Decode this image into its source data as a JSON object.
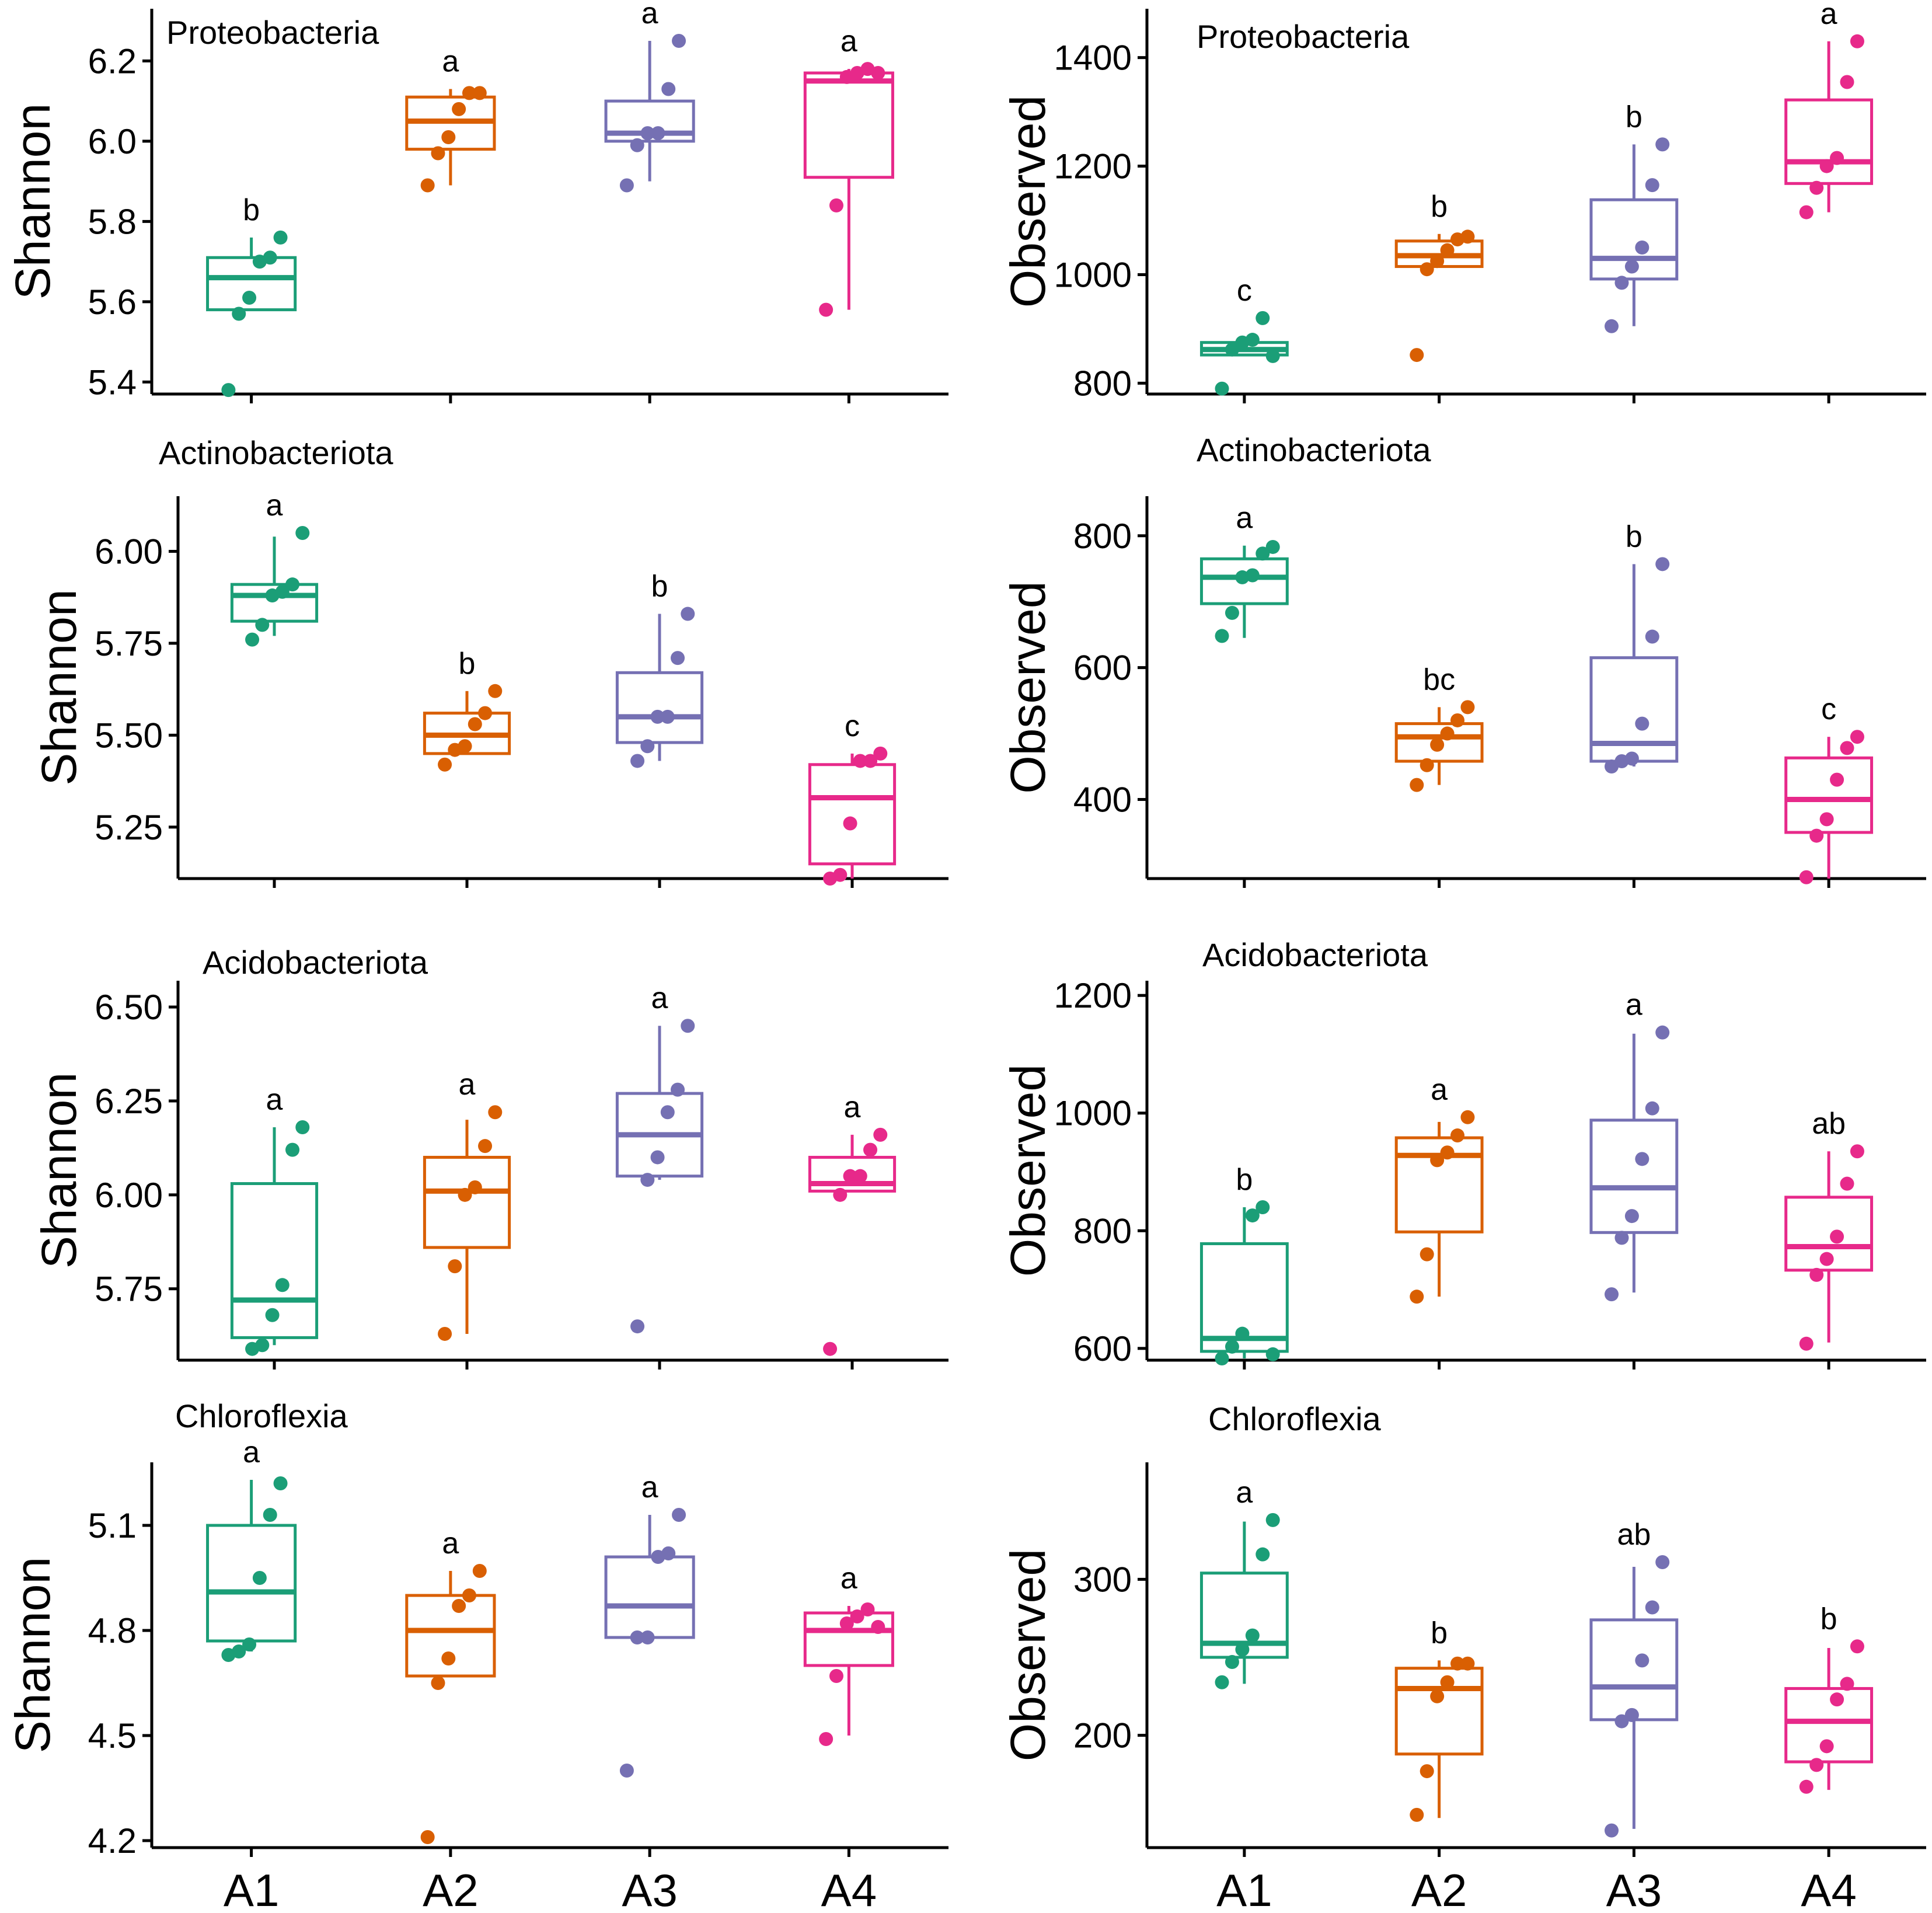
{
  "figure": {
    "groups": [
      "A1",
      "A2",
      "A3",
      "A4"
    ],
    "group_colors": [
      "#1b9e77",
      "#d95f02",
      "#7570b3",
      "#e7298a"
    ],
    "axis_color": "#000000",
    "x_tick_labels": [
      "A1",
      "A2",
      "A3",
      "A4"
    ]
  },
  "chart_data": [
    {
      "type": "box",
      "title": "Proteobacteria",
      "xlabel": "",
      "ylabel": "Shannon",
      "categories": [
        "A1",
        "A2",
        "A3",
        "A4"
      ],
      "ylim": [
        5.37,
        6.33
      ],
      "yticks": [
        5.4,
        5.6,
        5.8,
        6.0,
        6.2
      ],
      "ytick_labels": [
        "5.4",
        "5.6",
        "5.8",
        "6.0",
        "6.2"
      ],
      "boxes": [
        {
          "group": "A1",
          "q1": 5.58,
          "median": 5.66,
          "q3": 5.71,
          "whisker_low": 5.58,
          "whisker_high": 5.76,
          "letter": "b",
          "points": [
            5.38,
            5.57,
            5.61,
            5.7,
            5.71,
            5.76
          ]
        },
        {
          "group": "A2",
          "q1": 5.98,
          "median": 6.05,
          "q3": 6.11,
          "whisker_low": 5.89,
          "whisker_high": 6.13,
          "letter": "a",
          "points": [
            5.89,
            5.97,
            6.01,
            6.08,
            6.12,
            6.12
          ]
        },
        {
          "group": "A3",
          "q1": 6.0,
          "median": 6.02,
          "q3": 6.1,
          "whisker_low": 5.9,
          "whisker_high": 6.25,
          "letter": "a",
          "points": [
            5.89,
            5.99,
            6.02,
            6.02,
            6.13,
            6.25
          ]
        },
        {
          "group": "A4",
          "q1": 5.91,
          "median": 6.15,
          "q3": 6.17,
          "whisker_low": 5.58,
          "whisker_high": 6.18,
          "letter": "a",
          "points": [
            5.58,
            5.84,
            6.16,
            6.17,
            6.18,
            6.17
          ]
        }
      ]
    },
    {
      "type": "box",
      "title": "Proteobacteria",
      "xlabel": "",
      "ylabel": "Observed",
      "categories": [
        "A1",
        "A2",
        "A3",
        "A4"
      ],
      "ylim": [
        780,
        1490
      ],
      "yticks": [
        800,
        1000,
        1200,
        1400
      ],
      "ytick_labels": [
        "800",
        "1000",
        "1200",
        "1400"
      ],
      "boxes": [
        {
          "group": "A1",
          "q1": 852,
          "median": 862,
          "q3": 875,
          "whisker_low": 852,
          "whisker_high": 885,
          "letter": "c",
          "points": [
            790,
            862,
            875,
            880,
            920,
            850
          ]
        },
        {
          "group": "A2",
          "q1": 1015,
          "median": 1035,
          "q3": 1062,
          "whisker_low": 1015,
          "whisker_high": 1075,
          "letter": "b",
          "points": [
            852,
            1010,
            1025,
            1045,
            1065,
            1070
          ]
        },
        {
          "group": "A3",
          "q1": 992,
          "median": 1030,
          "q3": 1138,
          "whisker_low": 905,
          "whisker_high": 1240,
          "letter": "b",
          "points": [
            905,
            985,
            1015,
            1050,
            1165,
            1240
          ]
        },
        {
          "group": "A4",
          "q1": 1168,
          "median": 1208,
          "q3": 1322,
          "whisker_low": 1115,
          "whisker_high": 1430,
          "letter": "a",
          "points": [
            1115,
            1160,
            1200,
            1215,
            1355,
            1430
          ]
        }
      ]
    },
    {
      "type": "box",
      "title": "Actinobacteriota",
      "xlabel": "",
      "ylabel": "Shannon",
      "categories": [
        "A1",
        "A2",
        "A3",
        "A4"
      ],
      "ylim": [
        5.11,
        6.15
      ],
      "yticks": [
        5.25,
        5.5,
        5.75,
        6.0
      ],
      "ytick_labels": [
        "5.25",
        "5.50",
        "5.75",
        "6.00"
      ],
      "boxes": [
        {
          "group": "A1",
          "q1": 5.81,
          "median": 5.88,
          "q3": 5.91,
          "whisker_low": 5.77,
          "whisker_high": 6.04,
          "letter": "a",
          "points": [
            5.76,
            5.8,
            5.88,
            5.89,
            5.91,
            6.05
          ]
        },
        {
          "group": "A2",
          "q1": 5.45,
          "median": 5.5,
          "q3": 5.56,
          "whisker_low": 5.45,
          "whisker_high": 5.62,
          "letter": "b",
          "points": [
            5.42,
            5.46,
            5.47,
            5.53,
            5.56,
            5.62
          ]
        },
        {
          "group": "A3",
          "q1": 5.48,
          "median": 5.55,
          "q3": 5.67,
          "whisker_low": 5.43,
          "whisker_high": 5.83,
          "letter": "b",
          "points": [
            5.43,
            5.47,
            5.55,
            5.55,
            5.71,
            5.83
          ]
        },
        {
          "group": "A4",
          "q1": 5.15,
          "median": 5.33,
          "q3": 5.42,
          "whisker_low": 5.11,
          "whisker_high": 5.45,
          "letter": "c",
          "points": [
            5.11,
            5.12,
            5.26,
            5.43,
            5.43,
            5.45
          ]
        }
      ]
    },
    {
      "type": "box",
      "title": "Actinobacteriota",
      "xlabel": "",
      "ylabel": "Observed",
      "categories": [
        "A1",
        "A2",
        "A3",
        "A4"
      ],
      "ylim": [
        280,
        860
      ],
      "yticks": [
        400,
        600,
        800
      ],
      "ytick_labels": [
        "400",
        "600",
        "800"
      ],
      "boxes": [
        {
          "group": "A1",
          "q1": 697,
          "median": 737,
          "q3": 765,
          "whisker_low": 645,
          "whisker_high": 785,
          "letter": "a",
          "points": [
            648,
            683,
            737,
            740,
            773,
            783
          ]
        },
        {
          "group": "A2",
          "q1": 458,
          "median": 495,
          "q3": 515,
          "whisker_low": 422,
          "whisker_high": 540,
          "letter": "bc",
          "points": [
            422,
            452,
            483,
            500,
            520,
            540
          ]
        },
        {
          "group": "A3",
          "q1": 458,
          "median": 485,
          "q3": 615,
          "whisker_low": 450,
          "whisker_high": 757,
          "letter": "b",
          "points": [
            450,
            458,
            462,
            515,
            647,
            757
          ]
        },
        {
          "group": "A4",
          "q1": 350,
          "median": 400,
          "q3": 463,
          "whisker_low": 280,
          "whisker_high": 495,
          "letter": "c",
          "points": [
            282,
            345,
            370,
            430,
            478,
            495
          ]
        }
      ]
    },
    {
      "type": "box",
      "title": "Acidobacteriota",
      "xlabel": "",
      "ylabel": "Shannon",
      "categories": [
        "A1",
        "A2",
        "A3",
        "A4"
      ],
      "ylim": [
        5.56,
        6.57
      ],
      "yticks": [
        5.75,
        6.0,
        6.25,
        6.5
      ],
      "ytick_labels": [
        "5.75",
        "6.00",
        "6.25",
        "6.50"
      ],
      "boxes": [
        {
          "group": "A1",
          "q1": 5.62,
          "median": 5.72,
          "q3": 6.03,
          "whisker_low": 5.6,
          "whisker_high": 6.18,
          "letter": "a",
          "points": [
            5.59,
            5.6,
            5.68,
            5.76,
            6.12,
            6.18
          ]
        },
        {
          "group": "A2",
          "q1": 5.86,
          "median": 6.01,
          "q3": 6.1,
          "whisker_low": 5.63,
          "whisker_high": 6.2,
          "letter": "a",
          "points": [
            5.63,
            5.81,
            6.0,
            6.02,
            6.13,
            6.22
          ]
        },
        {
          "group": "A3",
          "q1": 6.05,
          "median": 6.16,
          "q3": 6.27,
          "whisker_low": 6.04,
          "whisker_high": 6.45,
          "letter": "a",
          "points": [
            5.65,
            6.04,
            6.1,
            6.22,
            6.28,
            6.45
          ]
        },
        {
          "group": "A4",
          "q1": 6.01,
          "median": 6.03,
          "q3": 6.1,
          "whisker_low": 6.01,
          "whisker_high": 6.16,
          "letter": "a",
          "points": [
            5.59,
            6.0,
            6.05,
            6.05,
            6.12,
            6.16
          ]
        }
      ]
    },
    {
      "type": "box",
      "title": "Acidobacteriota",
      "xlabel": "",
      "ylabel": "Observed",
      "categories": [
        "A1",
        "A2",
        "A3",
        "A4"
      ],
      "ylim": [
        580,
        1225
      ],
      "yticks": [
        600,
        800,
        1000,
        1200
      ],
      "ytick_labels": [
        "600",
        "800",
        "1000",
        "1200"
      ],
      "boxes": [
        {
          "group": "A1",
          "q1": 595,
          "median": 617,
          "q3": 778,
          "whisker_low": 583,
          "whisker_high": 840,
          "letter": "b",
          "points": [
            583,
            603,
            625,
            826,
            840,
            590
          ]
        },
        {
          "group": "A2",
          "q1": 798,
          "median": 928,
          "q3": 958,
          "whisker_low": 688,
          "whisker_high": 985,
          "letter": "a",
          "points": [
            688,
            760,
            920,
            933,
            962,
            993
          ]
        },
        {
          "group": "A3",
          "q1": 797,
          "median": 873,
          "q3": 988,
          "whisker_low": 695,
          "whisker_high": 1135,
          "letter": "a",
          "points": [
            692,
            788,
            825,
            922,
            1008,
            1137
          ]
        },
        {
          "group": "A4",
          "q1": 733,
          "median": 773,
          "q3": 857,
          "whisker_low": 610,
          "whisker_high": 935,
          "letter": "ab",
          "points": [
            608,
            725,
            752,
            790,
            880,
            935
          ]
        }
      ]
    },
    {
      "type": "box",
      "title": "Chloroflexia",
      "xlabel": "",
      "ylabel": "Shannon",
      "categories": [
        "A1",
        "A2",
        "A3",
        "A4"
      ],
      "ylim": [
        4.18,
        5.28
      ],
      "yticks": [
        4.2,
        4.5,
        4.8,
        5.1
      ],
      "ytick_labels": [
        "4.2",
        "4.5",
        "4.8",
        "5.1"
      ],
      "boxes": [
        {
          "group": "A1",
          "q1": 4.77,
          "median": 4.91,
          "q3": 5.1,
          "whisker_low": 4.74,
          "whisker_high": 5.23,
          "letter": "a",
          "points": [
            4.73,
            4.74,
            4.76,
            4.95,
            5.13,
            5.22
          ]
        },
        {
          "group": "A2",
          "q1": 4.67,
          "median": 4.8,
          "q3": 4.9,
          "whisker_low": 4.67,
          "whisker_high": 4.97,
          "letter": "a",
          "points": [
            4.21,
            4.65,
            4.72,
            4.87,
            4.9,
            4.97
          ]
        },
        {
          "group": "A3",
          "q1": 4.78,
          "median": 4.87,
          "q3": 5.01,
          "whisker_low": 4.78,
          "whisker_high": 5.13,
          "letter": "a",
          "points": [
            4.4,
            4.78,
            4.78,
            5.01,
            5.02,
            5.13
          ]
        },
        {
          "group": "A4",
          "q1": 4.7,
          "median": 4.8,
          "q3": 4.85,
          "whisker_low": 4.5,
          "whisker_high": 4.87,
          "letter": "a",
          "points": [
            4.49,
            4.67,
            4.82,
            4.84,
            4.86,
            4.81
          ]
        }
      ]
    },
    {
      "type": "box",
      "title": "Chloroflexia",
      "xlabel": "",
      "ylabel": "Observed",
      "categories": [
        "A1",
        "A2",
        "A3",
        "A4"
      ],
      "ylim": [
        128,
        375
      ],
      "yticks": [
        200,
        300
      ],
      "ytick_labels": [
        "200",
        "300"
      ],
      "boxes": [
        {
          "group": "A1",
          "q1": 250,
          "median": 259,
          "q3": 304,
          "whisker_low": 233,
          "whisker_high": 337,
          "letter": "a",
          "points": [
            234,
            247,
            255,
            264,
            316,
            338
          ]
        },
        {
          "group": "A2",
          "q1": 188,
          "median": 230,
          "q3": 243,
          "whisker_low": 147,
          "whisker_high": 248,
          "letter": "b",
          "points": [
            149,
            177,
            225,
            234,
            246,
            246
          ]
        },
        {
          "group": "A3",
          "q1": 210,
          "median": 231,
          "q3": 274,
          "whisker_low": 140,
          "whisker_high": 308,
          "letter": "ab",
          "points": [
            139,
            209,
            213,
            248,
            282,
            311
          ]
        },
        {
          "group": "A4",
          "q1": 183,
          "median": 209,
          "q3": 230,
          "whisker_low": 165,
          "whisker_high": 256,
          "letter": "b",
          "points": [
            167,
            181,
            193,
            223,
            233,
            257
          ]
        }
      ]
    }
  ]
}
